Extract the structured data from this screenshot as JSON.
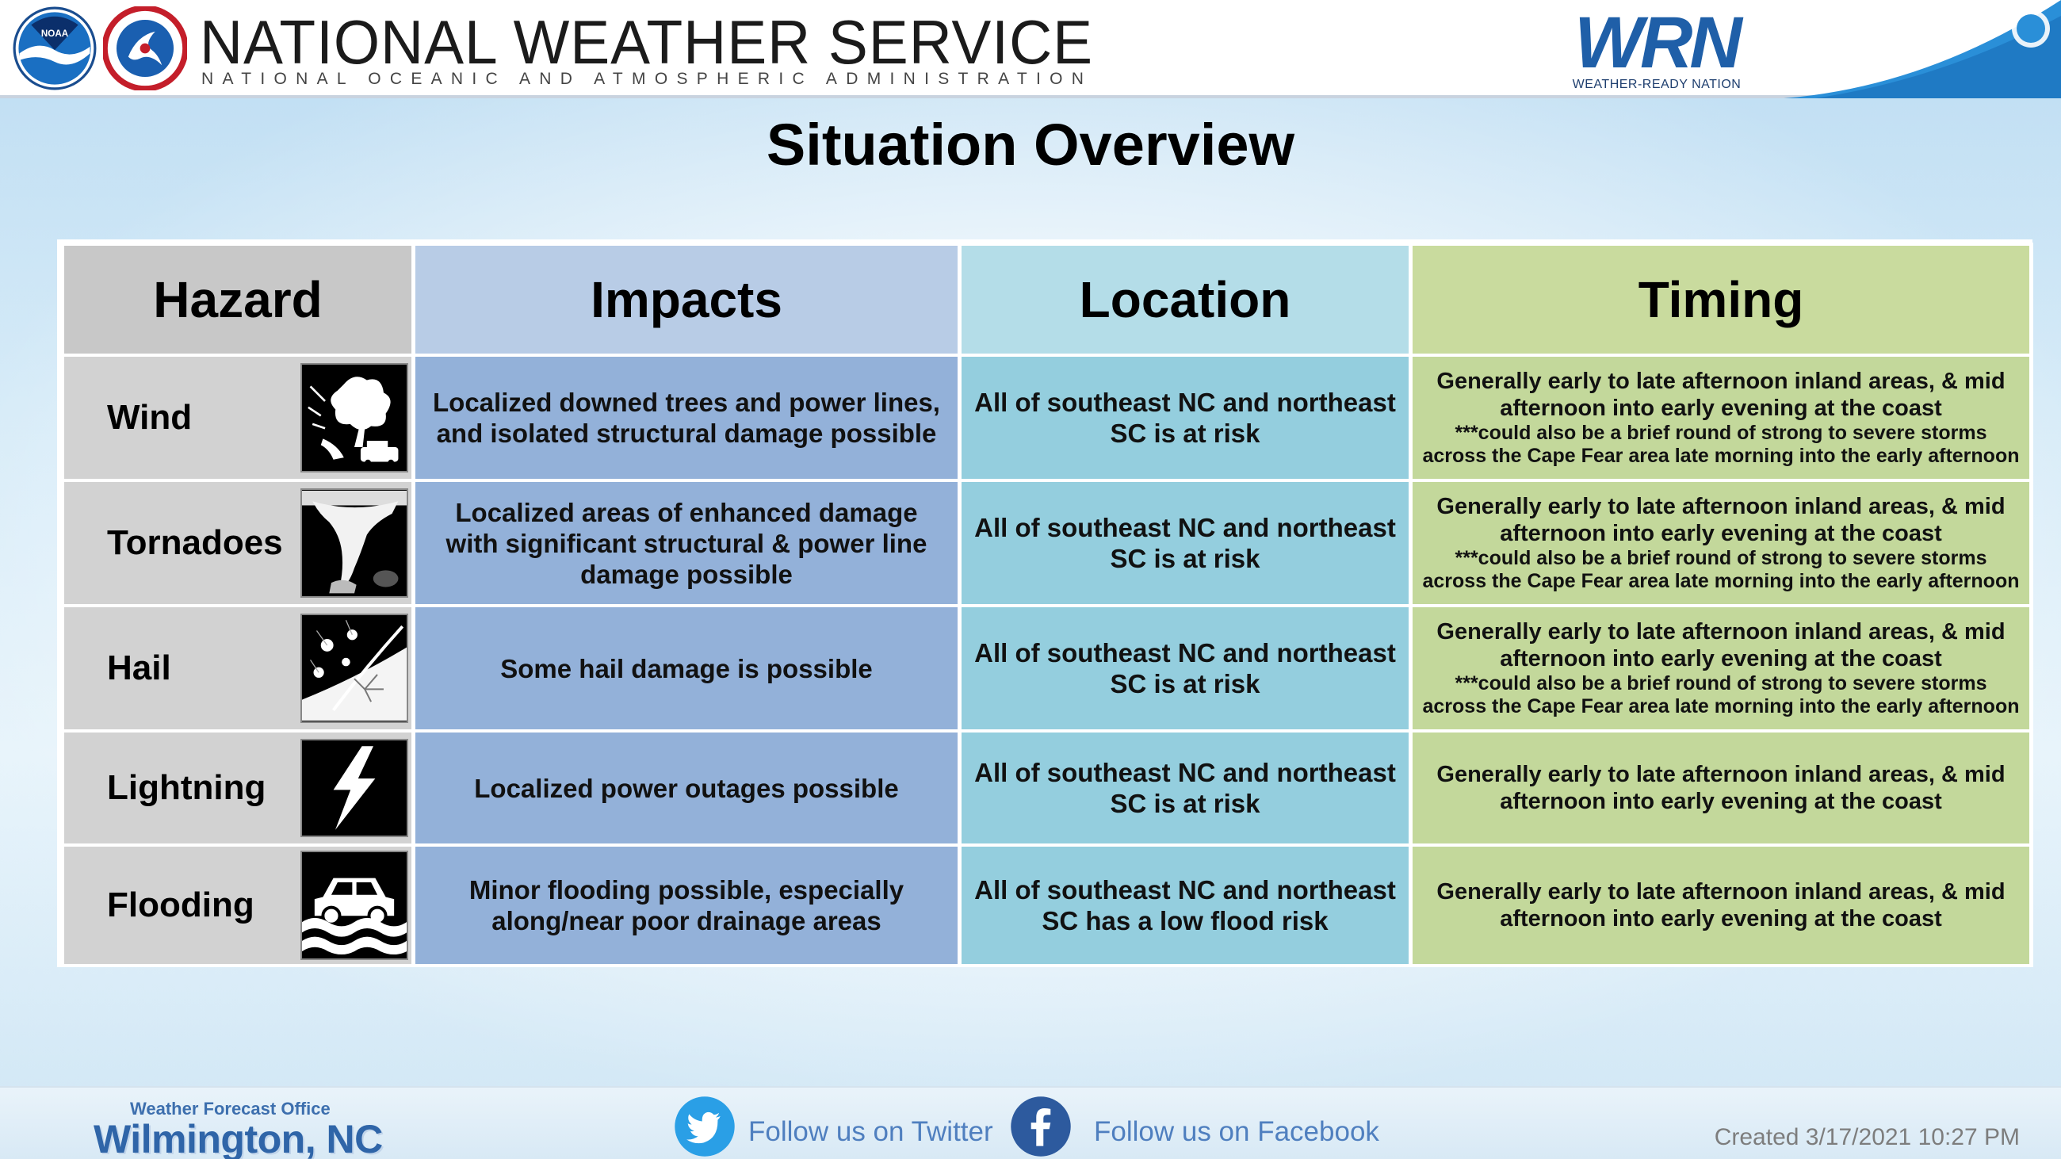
{
  "header": {
    "agency_title": "NATIONAL WEATHER SERVICE",
    "agency_subtitle": "NATIONAL OCEANIC AND ATMOSPHERIC ADMINISTRATION",
    "noaa_logo_text": "NOAA",
    "wrn_letters": "WRN",
    "wrn_tagline": "WEATHER-READY NATION"
  },
  "title": "Situation Overview",
  "table": {
    "headers": [
      "Hazard",
      "Impacts",
      "Location",
      "Timing"
    ],
    "rows": [
      {
        "hazard": "Wind",
        "icon": "wind-damage-icon",
        "impacts": "Localized downed trees and power lines, and isolated structural damage possible",
        "location": "All of southeast NC and northeast SC is at risk",
        "timing": "Generally early to late afternoon inland areas, & mid afternoon into early evening at the coast",
        "timing_note": "***could also be a brief round of strong to severe storms across the Cape Fear area late morning into the early afternoon"
      },
      {
        "hazard": "Tornadoes",
        "icon": "tornado-icon",
        "impacts": "Localized areas of enhanced damage with significant structural & power line damage possible",
        "location": "All of southeast NC and northeast SC is at risk",
        "timing": "Generally early to late afternoon inland areas, & mid afternoon into early evening at the coast",
        "timing_note": "***could also be a brief round of strong to severe storms across the Cape Fear area late morning into the early afternoon"
      },
      {
        "hazard": "Hail",
        "icon": "hail-icon",
        "impacts": "Some hail damage is possible",
        "location": "All of southeast NC and northeast SC is at risk",
        "timing": "Generally early to late afternoon inland areas, & mid afternoon into early evening at the coast",
        "timing_note": "***could also be a brief round of strong to severe storms across the Cape Fear area late morning into the early afternoon"
      },
      {
        "hazard": "Lightning",
        "icon": "lightning-icon",
        "impacts": "Localized power outages possible",
        "location": "All of southeast NC and northeast SC is at risk",
        "timing": "Generally early to late afternoon inland areas, & mid afternoon into early evening at the coast",
        "timing_note": ""
      },
      {
        "hazard": "Flooding",
        "icon": "flooded-car-icon",
        "impacts": "Minor flooding possible, especially along/near poor drainage areas",
        "location": "All of southeast NC and northeast SC has a low flood risk",
        "timing": "Generally early to late afternoon inland areas, & mid afternoon into early evening at the coast",
        "timing_note": ""
      }
    ]
  },
  "footer": {
    "office_label": "Weather Forecast Office",
    "office_city": "Wilmington, NC",
    "twitter_label": "Follow us on Twitter",
    "facebook_label": "Follow us on Facebook",
    "created": "Created  3/17/2021 10:27 PM"
  },
  "colors": {
    "hazard_header": "#c8c8c8",
    "impacts_header": "#b8cce6",
    "location_header": "#b4dde8",
    "timing_header": "#c9db9e",
    "hazard_cell": "#d2d2d2",
    "impacts_cell": "#93b1d9",
    "location_cell": "#94cede",
    "timing_cell": "#c3d89b"
  }
}
